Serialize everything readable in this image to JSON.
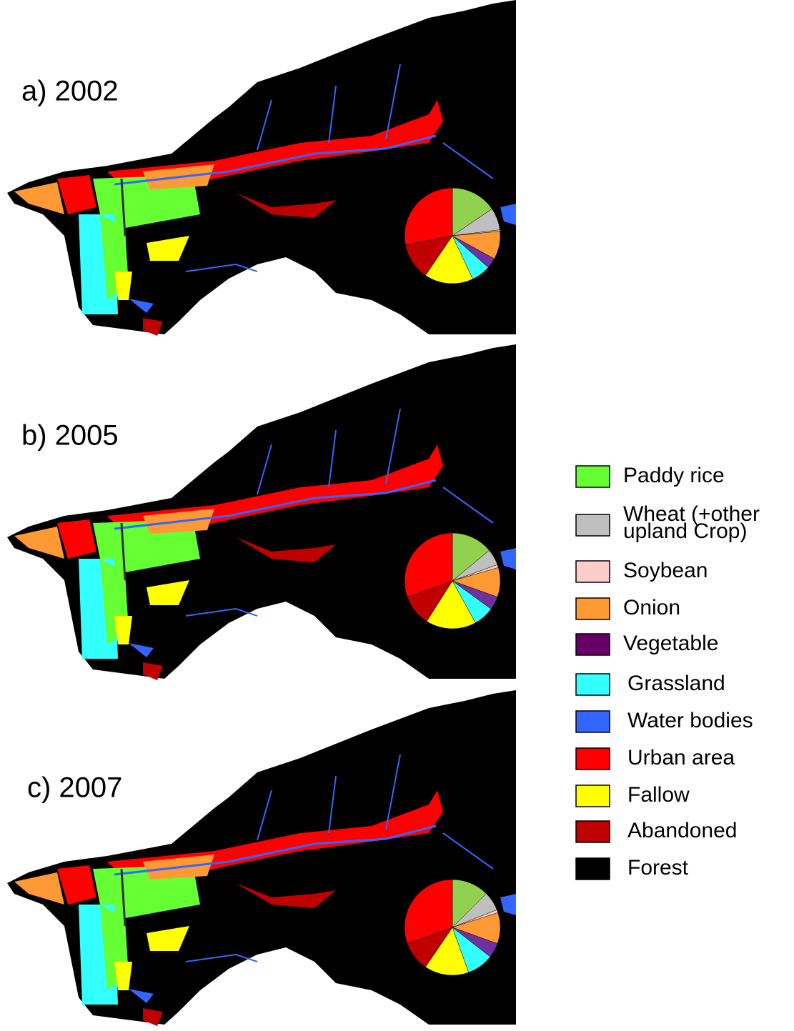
{
  "chart_data": [
    {
      "type": "pie",
      "title": "a) 2002",
      "values": [
        15.5,
        7.5,
        0.5,
        9.5,
        3.5,
        6.5,
        16.5,
        12.5,
        28
      ],
      "colors": [
        "#92d050",
        "#bfbfbf",
        "#ffcccc",
        "#ff9933",
        "#7030a0",
        "#33ffff",
        "#ffff00",
        "#c00000",
        "#ff0000"
      ]
    },
    {
      "type": "pie",
      "title": "b) 2005",
      "values": [
        14,
        5.5,
        1,
        10,
        4.5,
        7,
        17,
        10.5,
        30.5
      ],
      "colors": [
        "#92d050",
        "#bfbfbf",
        "#ffcccc",
        "#ff9933",
        "#7030a0",
        "#33ffff",
        "#ffff00",
        "#c00000",
        "#ff0000"
      ]
    },
    {
      "type": "pie",
      "title": "c) 2007",
      "values": [
        12.5,
        6.5,
        1,
        10.5,
        5,
        9,
        15,
        10,
        30.5
      ],
      "colors": [
        "#92d050",
        "#bfbfbf",
        "#ffcccc",
        "#ff9933",
        "#7030a0",
        "#33ffff",
        "#ffff00",
        "#c00000",
        "#ff0000"
      ]
    }
  ],
  "legend": [
    {
      "name": "Paddy rice",
      "color": "#66ff33"
    },
    {
      "name": "Wheat (+other\nupland Crop)",
      "color": "#bfbfbf"
    },
    {
      "name": "Soybean",
      "color": "#ffcccc"
    },
    {
      "name": "Onion",
      "color": "#ff9933"
    },
    {
      "name": "Vegetable",
      "color": "#660066"
    },
    {
      "name": "Grassland",
      "color": "#33ffff"
    },
    {
      "name": "Water bodies",
      "color": "#3366ff"
    },
    {
      "name": "Urban area",
      "color": "#ff0000"
    },
    {
      "name": "Fallow",
      "color": "#ffff00"
    },
    {
      "name": "Abandoned",
      "color": "#c00000"
    },
    {
      "name": "Forest",
      "color": "#000000"
    }
  ]
}
